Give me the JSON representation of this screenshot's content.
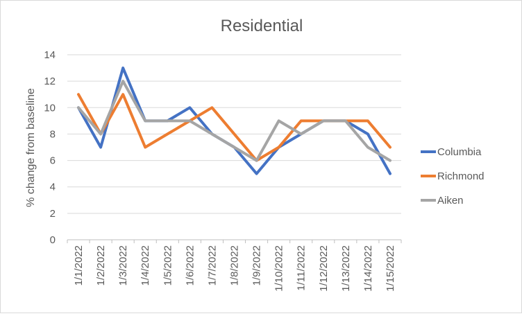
{
  "chart_data": {
    "type": "line",
    "title": "Residential",
    "xlabel": "",
    "ylabel": "% change from baseline",
    "ylim": [
      0,
      14
    ],
    "ytick_step": 2,
    "grid": true,
    "legend_position": "right",
    "categories": [
      "1/1/2022",
      "1/2/2022",
      "1/3/2022",
      "1/4/2022",
      "1/5/2022",
      "1/6/2022",
      "1/7/2022",
      "1/8/2022",
      "1/9/2022",
      "1/10/2022",
      "1/11/2022",
      "1/12/2022",
      "1/13/2022",
      "1/14/2022",
      "1/15/2022"
    ],
    "series": [
      {
        "name": "Columbia",
        "color": "#4472c4",
        "values": [
          10,
          7,
          13,
          9,
          9,
          10,
          8,
          7,
          5,
          7,
          8,
          9,
          9,
          8,
          5
        ]
      },
      {
        "name": "Richmond",
        "color": "#ed7d31",
        "values": [
          11,
          8,
          11,
          7,
          8,
          9,
          10,
          8,
          6,
          7,
          9,
          9,
          9,
          9,
          7
        ]
      },
      {
        "name": "Aiken",
        "color": "#a5a5a5",
        "values": [
          10,
          8,
          12,
          9,
          9,
          9,
          8,
          7,
          6,
          9,
          8,
          9,
          9,
          7,
          6
        ]
      }
    ]
  }
}
